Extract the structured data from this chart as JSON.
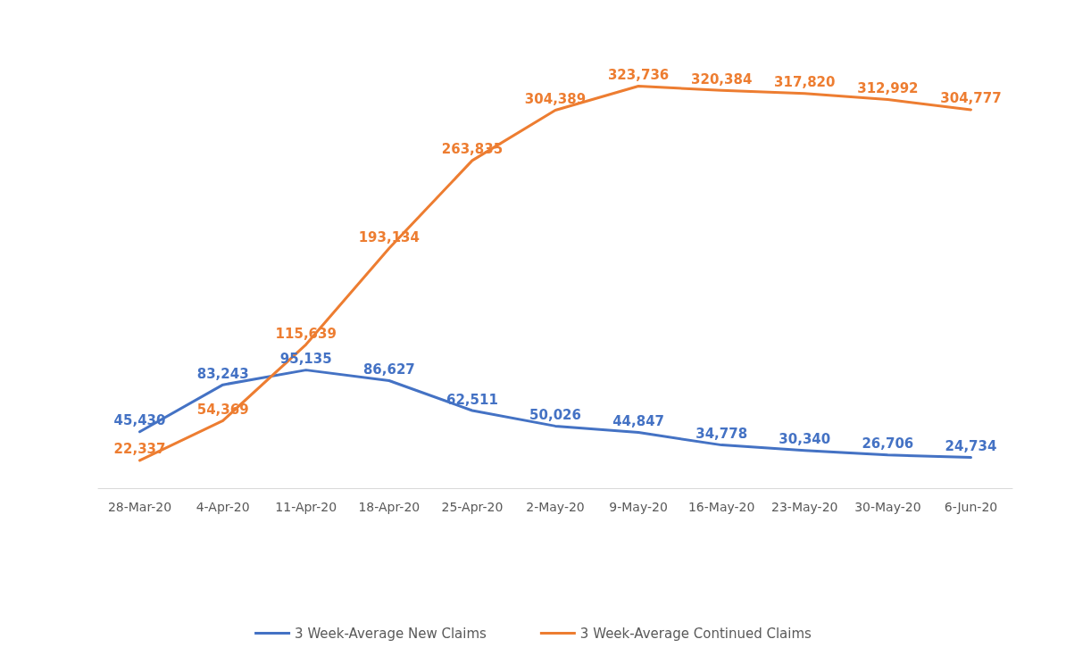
{
  "chart_data": {
    "type": "line",
    "categories": [
      "28-Mar-20",
      "4-Apr-20",
      "11-Apr-20",
      "18-Apr-20",
      "25-Apr-20",
      "2-May-20",
      "9-May-20",
      "16-May-20",
      "23-May-20",
      "30-May-20",
      "6-Jun-20"
    ],
    "series": [
      {
        "name": "3 Week-Average New Claims",
        "color": "#4472c4",
        "values": [
          45430,
          83243,
          95135,
          86627,
          62511,
          50026,
          44847,
          34778,
          30340,
          26706,
          24734
        ],
        "value_labels": [
          "45,430",
          "83,243",
          "95,135",
          "86,627",
          "62,511",
          "50,026",
          "44,847",
          "34,778",
          "30,340",
          "26,706",
          "24,734"
        ]
      },
      {
        "name": "3 Week-Average Continued Claims",
        "color": "#ed7d31",
        "values": [
          22337,
          54369,
          115639,
          193134,
          263835,
          304389,
          323736,
          320384,
          317820,
          312992,
          304777
        ],
        "value_labels": [
          "22,337",
          "54,369",
          "115,639",
          "193,134",
          "263,835",
          "304,389",
          "323,736",
          "320,384",
          "317,820",
          "312,992",
          "304,777"
        ]
      }
    ],
    "legend": "bottom",
    "grid": false,
    "marker": "none",
    "line_style": "solid"
  }
}
